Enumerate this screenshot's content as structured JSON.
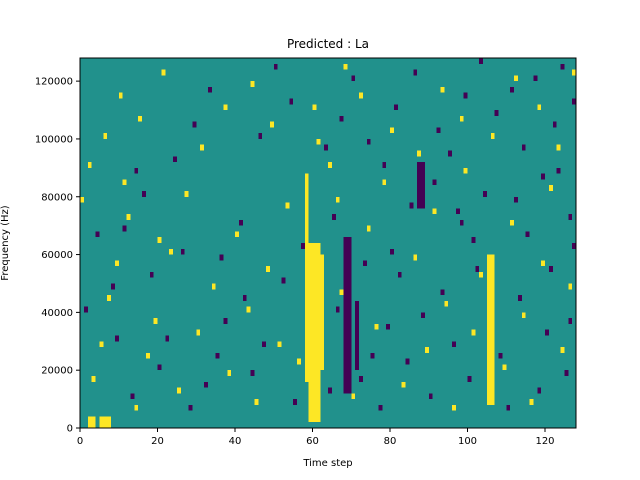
{
  "chart_data": {
    "type": "heatmap",
    "title": "Predicted : La",
    "xlabel": "Time step",
    "ylabel": "Frequency (Hz)",
    "xlim": [
      0,
      128
    ],
    "ylim": [
      0,
      128000
    ],
    "xticks": [
      0,
      20,
      40,
      60,
      80,
      100,
      120
    ],
    "yticks": [
      0,
      20000,
      40000,
      60000,
      80000,
      100000,
      120000
    ],
    "ytick_labels": [
      "0",
      "20000",
      "40000",
      "60000",
      "80000",
      "100000",
      "120000"
    ],
    "rows": 64,
    "cols": 128,
    "palette": {
      "low": "#440154",
      "mid": "#21918c",
      "high": "#fde725"
    },
    "background_level": "mid",
    "high_bands": [
      {
        "col_start": 59,
        "col_end": 62,
        "row_start": 1,
        "row_end": 32
      },
      {
        "col_start": 58,
        "col_end": 59,
        "row_start": 8,
        "row_end": 44
      },
      {
        "col_start": 62,
        "col_end": 63,
        "row_start": 10,
        "row_end": 30
      },
      {
        "col_start": 105,
        "col_end": 107,
        "row_start": 4,
        "row_end": 30
      },
      {
        "col_start": 2,
        "col_end": 4,
        "row_start": 0,
        "row_end": 2
      },
      {
        "col_start": 5,
        "col_end": 8,
        "row_start": 0,
        "row_end": 2
      }
    ],
    "low_bands": [
      {
        "col_start": 68,
        "col_end": 70,
        "row_start": 6,
        "row_end": 33
      },
      {
        "col_start": 71,
        "col_end": 72,
        "row_start": 10,
        "row_end": 22
      },
      {
        "col_start": 87,
        "col_end": 89,
        "row_start": 38,
        "row_end": 46
      }
    ],
    "low_cells": [
      [
        13,
        5
      ],
      [
        20,
        10
      ],
      [
        22,
        15
      ],
      [
        28,
        3
      ],
      [
        32,
        7
      ],
      [
        35,
        12
      ],
      [
        37,
        18
      ],
      [
        42,
        22
      ],
      [
        44,
        9
      ],
      [
        47,
        14
      ],
      [
        52,
        25
      ],
      [
        55,
        4
      ],
      [
        57,
        31
      ],
      [
        64,
        6
      ],
      [
        66,
        20
      ],
      [
        72,
        8
      ],
      [
        73,
        28
      ],
      [
        75,
        12
      ],
      [
        77,
        3
      ],
      [
        79,
        17
      ],
      [
        80,
        30
      ],
      [
        82,
        26
      ],
      [
        84,
        11
      ],
      [
        88,
        19
      ],
      [
        90,
        5
      ],
      [
        93,
        23
      ],
      [
        96,
        14
      ],
      [
        98,
        35
      ],
      [
        100,
        8
      ],
      [
        102,
        27
      ],
      [
        104,
        40
      ],
      [
        108,
        12
      ],
      [
        110,
        3
      ],
      [
        113,
        22
      ],
      [
        115,
        33
      ],
      [
        118,
        6
      ],
      [
        120,
        16
      ],
      [
        121,
        27
      ],
      [
        123,
        44
      ],
      [
        125,
        9
      ],
      [
        126,
        18
      ],
      [
        127,
        31
      ],
      [
        8,
        24
      ],
      [
        11,
        34
      ],
      [
        16,
        40
      ],
      [
        24,
        46
      ],
      [
        29,
        52
      ],
      [
        33,
        58
      ],
      [
        46,
        50
      ],
      [
        50,
        62
      ],
      [
        54,
        56
      ],
      [
        63,
        48
      ],
      [
        67,
        53
      ],
      [
        70,
        60
      ],
      [
        74,
        49
      ],
      [
        78,
        45
      ],
      [
        81,
        55
      ],
      [
        86,
        61
      ],
      [
        92,
        51
      ],
      [
        95,
        47
      ],
      [
        99,
        57
      ],
      [
        103,
        63
      ],
      [
        107,
        54
      ],
      [
        111,
        58
      ],
      [
        114,
        48
      ],
      [
        117,
        60
      ],
      [
        122,
        52
      ],
      [
        124,
        62
      ],
      [
        127,
        56
      ],
      [
        65,
        36
      ],
      [
        85,
        38
      ],
      [
        91,
        42
      ],
      [
        97,
        37
      ],
      [
        101,
        32
      ],
      [
        112,
        39
      ],
      [
        119,
        43
      ],
      [
        126,
        36
      ],
      [
        36,
        29
      ],
      [
        41,
        35
      ],
      [
        26,
        30
      ],
      [
        18,
        26
      ],
      [
        14,
        44
      ],
      [
        9,
        15
      ],
      [
        4,
        33
      ],
      [
        1,
        20
      ]
    ],
    "high_cells": [
      [
        3,
        8
      ],
      [
        5,
        14
      ],
      [
        7,
        22
      ],
      [
        9,
        28
      ],
      [
        12,
        36
      ],
      [
        14,
        3
      ],
      [
        17,
        12
      ],
      [
        19,
        18
      ],
      [
        23,
        30
      ],
      [
        25,
        6
      ],
      [
        27,
        40
      ],
      [
        30,
        16
      ],
      [
        34,
        24
      ],
      [
        38,
        9
      ],
      [
        40,
        33
      ],
      [
        43,
        20
      ],
      [
        45,
        4
      ],
      [
        48,
        27
      ],
      [
        51,
        14
      ],
      [
        53,
        38
      ],
      [
        56,
        11
      ],
      [
        64,
        45
      ],
      [
        66,
        39
      ],
      [
        67,
        23
      ],
      [
        70,
        5
      ],
      [
        74,
        34
      ],
      [
        76,
        17
      ],
      [
        78,
        42
      ],
      [
        83,
        7
      ],
      [
        86,
        29
      ],
      [
        89,
        13
      ],
      [
        91,
        37
      ],
      [
        94,
        21
      ],
      [
        96,
        3
      ],
      [
        99,
        44
      ],
      [
        101,
        16
      ],
      [
        103,
        26
      ],
      [
        109,
        10
      ],
      [
        111,
        35
      ],
      [
        114,
        19
      ],
      [
        116,
        4
      ],
      [
        119,
        28
      ],
      [
        121,
        41
      ],
      [
        124,
        13
      ],
      [
        126,
        24
      ],
      [
        2,
        45
      ],
      [
        6,
        50
      ],
      [
        10,
        57
      ],
      [
        15,
        53
      ],
      [
        21,
        61
      ],
      [
        31,
        48
      ],
      [
        37,
        55
      ],
      [
        44,
        59
      ],
      [
        49,
        52
      ],
      [
        60,
        55
      ],
      [
        61,
        49
      ],
      [
        68,
        62
      ],
      [
        72,
        57
      ],
      [
        80,
        51
      ],
      [
        87,
        47
      ],
      [
        93,
        58
      ],
      [
        98,
        53
      ],
      [
        106,
        50
      ],
      [
        112,
        60
      ],
      [
        118,
        55
      ],
      [
        123,
        48
      ],
      [
        127,
        61
      ],
      [
        0,
        39
      ],
      [
        11,
        42
      ],
      [
        20,
        32
      ]
    ]
  }
}
